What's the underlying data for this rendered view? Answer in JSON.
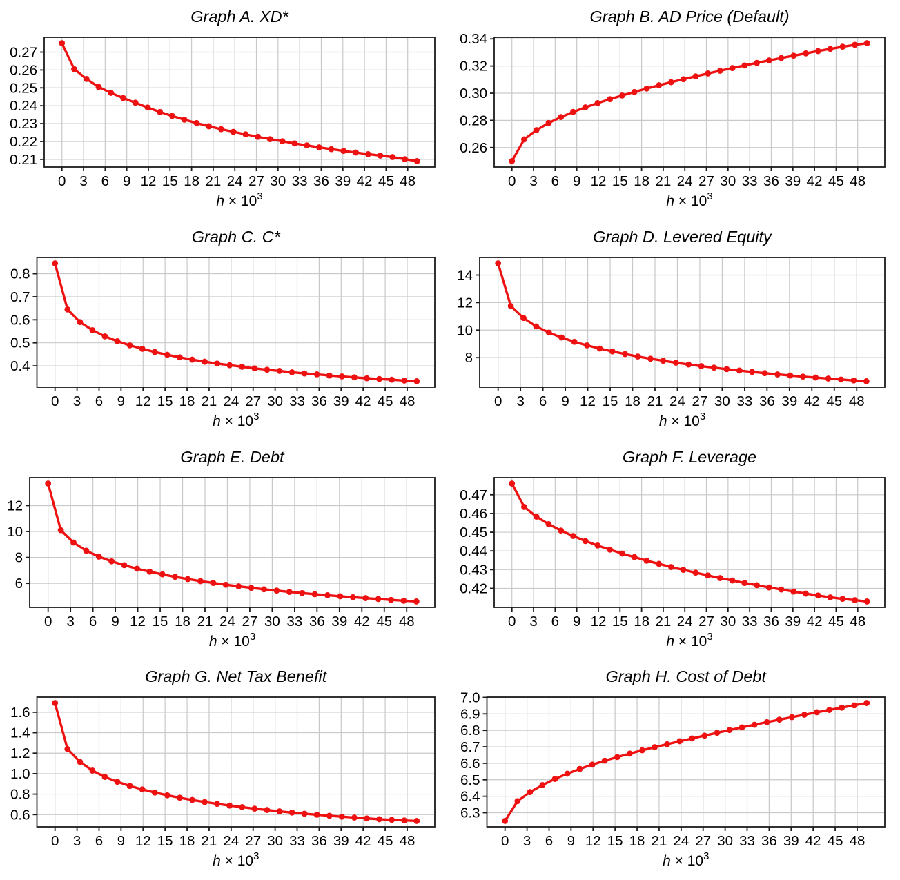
{
  "page": {
    "background": "#ffffff"
  },
  "style": {
    "line_color": "#ee1111",
    "grid_color": "#c9c9c9",
    "frame_color": "#1c1c1c",
    "text_color": "#000000"
  },
  "x_shared": [
    0,
    1.7,
    3.4,
    5.1,
    6.8,
    8.5,
    10.2,
    11.9,
    13.6,
    15.3,
    17.0,
    18.7,
    20.4,
    22.1,
    23.8,
    25.5,
    27.2,
    28.9,
    30.6,
    32.3,
    34.0,
    35.7,
    37.4,
    39.1,
    40.8,
    42.5,
    44.2,
    45.9,
    47.6,
    49.3
  ],
  "chart_data": [
    {
      "type": "line",
      "title": "Graph A. XD*",
      "xlabel": {
        "variable": "h",
        "times": "×",
        "base": "10",
        "exponent": "3"
      },
      "x": [
        0,
        1.7,
        3.4,
        5.1,
        6.8,
        8.5,
        10.2,
        11.9,
        13.6,
        15.3,
        17.0,
        18.7,
        20.4,
        22.1,
        23.8,
        25.5,
        27.2,
        28.9,
        30.6,
        32.3,
        34.0,
        35.7,
        37.4,
        39.1,
        40.8,
        42.5,
        44.2,
        45.9,
        47.6,
        49.3
      ],
      "values": [
        0.275,
        0.2605,
        0.255,
        0.2505,
        0.2472,
        0.2443,
        0.2417,
        0.239,
        0.2365,
        0.2343,
        0.2322,
        0.2303,
        0.2285,
        0.2269,
        0.2254,
        0.224,
        0.2226,
        0.2213,
        0.2201,
        0.2189,
        0.2178,
        0.2167,
        0.2157,
        0.2147,
        0.2138,
        0.2129,
        0.2121,
        0.2113,
        0.2101,
        0.209
      ],
      "x_ticks": [
        "0",
        "3",
        "6",
        "9",
        "12",
        "15",
        "18",
        "21",
        "24",
        "27",
        "30",
        "33",
        "36",
        "39",
        "42",
        "45",
        "48"
      ],
      "y_ticks": [
        "0.21",
        "0.22",
        "0.23",
        "0.24",
        "0.25",
        "0.26",
        "0.27"
      ],
      "ylim": [
        0.2057,
        0.2783
      ],
      "grid": true,
      "legend": "none",
      "line_color": "#ee1111",
      "marker": "circle"
    },
    {
      "type": "line",
      "title": "Graph B. AD Price (Default)",
      "xlabel": {
        "variable": "h",
        "times": "×",
        "base": "10",
        "exponent": "3"
      },
      "x": [
        0,
        1.7,
        3.4,
        5.1,
        6.8,
        8.5,
        10.2,
        11.9,
        13.6,
        15.3,
        17.0,
        18.7,
        20.4,
        22.1,
        23.8,
        25.5,
        27.2,
        28.9,
        30.6,
        32.3,
        34.0,
        35.7,
        37.4,
        39.1,
        40.8,
        42.5,
        44.2,
        45.9,
        47.6,
        49.3
      ],
      "values": [
        0.25,
        0.266,
        0.2728,
        0.2781,
        0.2824,
        0.2862,
        0.2896,
        0.2927,
        0.2956,
        0.2983,
        0.3009,
        0.3034,
        0.3058,
        0.3081,
        0.3103,
        0.3124,
        0.3145,
        0.3165,
        0.3185,
        0.3204,
        0.3223,
        0.3241,
        0.3259,
        0.3276,
        0.3293,
        0.331,
        0.3326,
        0.3342,
        0.3356,
        0.3368
      ],
      "x_ticks": [
        "0",
        "3",
        "6",
        "9",
        "12",
        "15",
        "18",
        "21",
        "24",
        "27",
        "30",
        "33",
        "36",
        "39",
        "42",
        "45",
        "48"
      ],
      "y_ticks": [
        "0.26",
        "0.28",
        "0.30",
        "0.32",
        "0.34"
      ],
      "ylim": [
        0.2457,
        0.3411
      ],
      "grid": true,
      "legend": "none",
      "line_color": "#ee1111",
      "marker": "circle"
    },
    {
      "type": "line",
      "title": "Graph C. C*",
      "xlabel": {
        "variable": "h",
        "times": "×",
        "base": "10",
        "exponent": "3"
      },
      "x": [
        0,
        1.7,
        3.4,
        5.1,
        6.8,
        8.5,
        10.2,
        11.9,
        13.6,
        15.3,
        17.0,
        18.7,
        20.4,
        22.1,
        23.8,
        25.5,
        27.2,
        28.9,
        30.6,
        32.3,
        34.0,
        35.7,
        37.4,
        39.1,
        40.8,
        42.5,
        44.2,
        45.9,
        47.6,
        49.3
      ],
      "values": [
        0.845,
        0.645,
        0.59,
        0.555,
        0.528,
        0.507,
        0.489,
        0.474,
        0.46,
        0.448,
        0.437,
        0.427,
        0.418,
        0.41,
        0.403,
        0.396,
        0.389,
        0.383,
        0.378,
        0.372,
        0.367,
        0.363,
        0.358,
        0.354,
        0.35,
        0.346,
        0.343,
        0.34,
        0.336,
        0.333
      ],
      "x_ticks": [
        "0",
        "3",
        "6",
        "9",
        "12",
        "15",
        "18",
        "21",
        "24",
        "27",
        "30",
        "33",
        "36",
        "39",
        "42",
        "45",
        "48"
      ],
      "y_ticks": [
        "0.4",
        "0.5",
        "0.6",
        "0.7",
        "0.8"
      ],
      "ylim": [
        0.3074,
        0.8706
      ],
      "grid": true,
      "legend": "none",
      "line_color": "#ee1111",
      "marker": "circle"
    },
    {
      "type": "line",
      "title": "Graph D. Levered Equity",
      "xlabel": {
        "variable": "h",
        "times": "×",
        "base": "10",
        "exponent": "3"
      },
      "x": [
        0,
        1.7,
        3.4,
        5.1,
        6.8,
        8.5,
        10.2,
        11.9,
        13.6,
        15.3,
        17.0,
        18.7,
        20.4,
        22.1,
        23.8,
        25.5,
        27.2,
        28.9,
        30.6,
        32.3,
        34.0,
        35.7,
        37.4,
        39.1,
        40.8,
        42.5,
        44.2,
        45.9,
        47.6,
        49.3
      ],
      "values": [
        14.85,
        11.75,
        10.88,
        10.27,
        9.82,
        9.46,
        9.15,
        8.89,
        8.66,
        8.45,
        8.26,
        8.08,
        7.92,
        7.77,
        7.63,
        7.5,
        7.38,
        7.27,
        7.16,
        7.06,
        6.96,
        6.87,
        6.78,
        6.7,
        6.62,
        6.55,
        6.48,
        6.41,
        6.34,
        6.28
      ],
      "x_ticks": [
        "0",
        "3",
        "6",
        "9",
        "12",
        "15",
        "18",
        "21",
        "24",
        "27",
        "30",
        "33",
        "36",
        "39",
        "42",
        "45",
        "48"
      ],
      "y_ticks": [
        "8",
        "10",
        "12",
        "14"
      ],
      "ylim": [
        5.85,
        15.28
      ],
      "grid": true,
      "legend": "none",
      "line_color": "#ee1111",
      "marker": "circle"
    },
    {
      "type": "line",
      "title": "Graph E. Debt",
      "xlabel": {
        "variable": "h",
        "times": "×",
        "base": "10",
        "exponent": "3"
      },
      "x": [
        0,
        1.7,
        3.4,
        5.1,
        6.8,
        8.5,
        10.2,
        11.9,
        13.6,
        15.3,
        17.0,
        18.7,
        20.4,
        22.1,
        23.8,
        25.5,
        27.2,
        28.9,
        30.6,
        32.3,
        34.0,
        35.7,
        37.4,
        39.1,
        40.8,
        42.5,
        44.2,
        45.9,
        47.6,
        49.3
      ],
      "values": [
        13.7,
        10.1,
        9.15,
        8.52,
        8.06,
        7.7,
        7.4,
        7.13,
        6.9,
        6.69,
        6.5,
        6.33,
        6.17,
        6.03,
        5.89,
        5.77,
        5.65,
        5.54,
        5.44,
        5.34,
        5.25,
        5.16,
        5.08,
        5.0,
        4.93,
        4.86,
        4.79,
        4.72,
        4.66,
        4.6
      ],
      "x_ticks": [
        "0",
        "3",
        "6",
        "9",
        "12",
        "15",
        "18",
        "21",
        "24",
        "27",
        "30",
        "33",
        "36",
        "39",
        "42",
        "45",
        "48"
      ],
      "y_ticks": [
        "6",
        "8",
        "10",
        "12"
      ],
      "ylim": [
        4.14,
        14.16
      ],
      "grid": true,
      "legend": "none",
      "line_color": "#ee1111",
      "marker": "circle"
    },
    {
      "type": "line",
      "title": "Graph F. Leverage",
      "xlabel": {
        "variable": "h",
        "times": "×",
        "base": "10",
        "exponent": "3"
      },
      "x": [
        0,
        1.7,
        3.4,
        5.1,
        6.8,
        8.5,
        10.2,
        11.9,
        13.6,
        15.3,
        17.0,
        18.7,
        20.4,
        22.1,
        23.8,
        25.5,
        27.2,
        28.9,
        30.6,
        32.3,
        34.0,
        35.7,
        37.4,
        39.1,
        40.8,
        42.5,
        44.2,
        45.9,
        47.6,
        49.3
      ],
      "values": [
        0.476,
        0.4635,
        0.4583,
        0.4543,
        0.4509,
        0.448,
        0.4453,
        0.4429,
        0.4407,
        0.4386,
        0.4367,
        0.4348,
        0.4331,
        0.4314,
        0.4299,
        0.4284,
        0.4269,
        0.4255,
        0.4242,
        0.4229,
        0.4217,
        0.4205,
        0.4194,
        0.4183,
        0.4172,
        0.4162,
        0.4152,
        0.4144,
        0.4137,
        0.413
      ],
      "x_ticks": [
        "0",
        "3",
        "6",
        "9",
        "12",
        "15",
        "18",
        "21",
        "24",
        "27",
        "30",
        "33",
        "36",
        "39",
        "42",
        "45",
        "48"
      ],
      "y_ticks": [
        "0.42",
        "0.43",
        "0.44",
        "0.45",
        "0.46",
        "0.47"
      ],
      "ylim": [
        0.4099,
        0.4792
      ],
      "grid": true,
      "legend": "none",
      "line_color": "#ee1111",
      "marker": "circle"
    },
    {
      "type": "line",
      "title": "Graph G. Net Tax Benefit",
      "xlabel": {
        "variable": "h",
        "times": "×",
        "base": "10",
        "exponent": "3"
      },
      "x": [
        0,
        1.7,
        3.4,
        5.1,
        6.8,
        8.5,
        10.2,
        11.9,
        13.6,
        15.3,
        17.0,
        18.7,
        20.4,
        22.1,
        23.8,
        25.5,
        27.2,
        28.9,
        30.6,
        32.3,
        34.0,
        35.7,
        37.4,
        39.1,
        40.8,
        42.5,
        44.2,
        45.9,
        47.6,
        49.3
      ],
      "values": [
        1.69,
        1.24,
        1.115,
        1.03,
        0.968,
        0.92,
        0.88,
        0.846,
        0.816,
        0.789,
        0.765,
        0.743,
        0.723,
        0.705,
        0.688,
        0.673,
        0.658,
        0.645,
        0.632,
        0.62,
        0.609,
        0.599,
        0.589,
        0.58,
        0.571,
        0.563,
        0.555,
        0.549,
        0.543,
        0.538
      ],
      "x_ticks": [
        "0",
        "3",
        "6",
        "9",
        "12",
        "15",
        "18",
        "21",
        "24",
        "27",
        "30",
        "33",
        "36",
        "39",
        "42",
        "45",
        "48"
      ],
      "y_ticks": [
        "0.6",
        "0.8",
        "1.0",
        "1.2",
        "1.4",
        "1.6"
      ],
      "ylim": [
        0.48,
        1.748
      ],
      "grid": true,
      "legend": "none",
      "line_color": "#ee1111",
      "marker": "circle"
    },
    {
      "type": "line",
      "title": "Graph H. Cost of Debt",
      "xlabel": {
        "variable": "h",
        "times": "×",
        "base": "10",
        "exponent": "3"
      },
      "x": [
        0,
        1.7,
        3.4,
        5.1,
        6.8,
        8.5,
        10.2,
        11.9,
        13.6,
        15.3,
        17.0,
        18.7,
        20.4,
        22.1,
        23.8,
        25.5,
        27.2,
        28.9,
        30.6,
        32.3,
        34.0,
        35.7,
        37.4,
        39.1,
        40.8,
        42.5,
        44.2,
        45.9,
        47.6,
        49.3
      ],
      "values": [
        6.25,
        6.37,
        6.425,
        6.468,
        6.505,
        6.537,
        6.566,
        6.592,
        6.616,
        6.638,
        6.659,
        6.679,
        6.698,
        6.716,
        6.734,
        6.751,
        6.768,
        6.785,
        6.802,
        6.818,
        6.834,
        6.85,
        6.865,
        6.88,
        6.895,
        6.91,
        6.924,
        6.938,
        6.952,
        6.966
      ],
      "x_ticks": [
        "0",
        "3",
        "6",
        "9",
        "12",
        "15",
        "18",
        "21",
        "24",
        "27",
        "30",
        "33",
        "36",
        "39",
        "42",
        "45",
        "48"
      ],
      "y_ticks": [
        "6.3",
        "6.4",
        "6.5",
        "6.6",
        "6.7",
        "6.8",
        "6.9",
        "7.0"
      ],
      "ylim": [
        6.214,
        7.002
      ],
      "grid": true,
      "legend": "none",
      "line_color": "#ee1111",
      "marker": "circle"
    }
  ]
}
